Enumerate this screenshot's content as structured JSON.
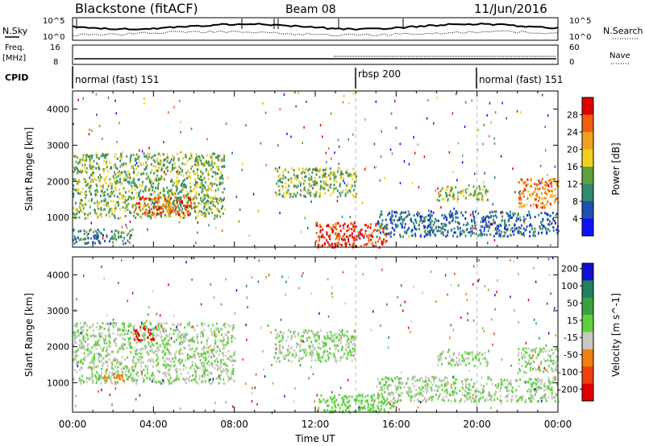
{
  "header": {
    "station": "Blackstone (fitACF)",
    "beam": "Beam 08",
    "date": "11/Jun/2016"
  },
  "noise_panel": {
    "left_label": "N.Sky",
    "right_label": "N.Search",
    "tick_top": "10^5",
    "tick_bottom": "10^0"
  },
  "freq_panel": {
    "left_label_line1": "Freq.",
    "left_label_line2": "[MHz]",
    "right_label": "Nave",
    "left_ticks": [
      "16",
      "8"
    ],
    "right_ticks": [
      "60",
      "0"
    ]
  },
  "cpid_panel": {
    "label": "CPID",
    "segments": [
      {
        "name": "normal (fast) 151",
        "start_h": 0,
        "end_h": 14
      },
      {
        "name": "rbsp 200",
        "start_h": 14,
        "end_h": 20
      },
      {
        "name": "normal (fast) 151",
        "start_h": 20,
        "end_h": 24
      }
    ]
  },
  "chart_data": [
    {
      "type": "heatmap",
      "panel": "power",
      "ylabel": "Slant Range [km]",
      "ylim": [
        180,
        4500
      ],
      "yticks": [
        1000,
        2000,
        3000,
        4000
      ],
      "xlim": [
        0,
        24
      ],
      "xticks": [
        "00:00",
        "04:00",
        "08:00",
        "12:00",
        "16:00",
        "20:00",
        "00:00"
      ],
      "colorbar_label": "Power [dB]",
      "colorbar_ticks": [
        "4",
        "8",
        "12",
        "16",
        "20",
        "24",
        "28"
      ],
      "colorbar_colors": [
        "#1010ff",
        "#2050b0",
        "#308a70",
        "#60a040",
        "#f0d020",
        "#f0a020",
        "#f06010",
        "#e00000"
      ],
      "colorbar_range": [
        0,
        32
      ],
      "regions": [
        {
          "x": [
            0.0,
            7.5
          ],
          "y": [
            1000,
            2800
          ],
          "level": 14
        },
        {
          "x": [
            3.0,
            6.0
          ],
          "y": [
            1100,
            1600
          ],
          "level": 26
        },
        {
          "x": [
            0.0,
            3.0
          ],
          "y": [
            300,
            700
          ],
          "level": 10
        },
        {
          "x": [
            10.0,
            14.0
          ],
          "y": [
            1600,
            2400
          ],
          "level": 14
        },
        {
          "x": [
            12.0,
            15.5
          ],
          "y": [
            200,
            900
          ],
          "level": 28
        },
        {
          "x": [
            15.0,
            24.0
          ],
          "y": [
            500,
            1200
          ],
          "level": 8
        },
        {
          "x": [
            18.0,
            20.5
          ],
          "y": [
            1500,
            1900
          ],
          "level": 16
        },
        {
          "x": [
            22.0,
            24.0
          ],
          "y": [
            1300,
            2100
          ],
          "level": 24
        }
      ]
    },
    {
      "type": "heatmap",
      "panel": "velocity",
      "ylabel": "Slant Range [km]",
      "ylim": [
        180,
        4500
      ],
      "yticks": [
        1000,
        2000,
        3000,
        4000
      ],
      "xlim": [
        0,
        24
      ],
      "xticks": [
        "00:00",
        "04:00",
        "08:00",
        "12:00",
        "16:00",
        "20:00",
        "00:00"
      ],
      "xlabel": "Time UT",
      "colorbar_label": "Velocity [m s^-1]",
      "colorbar_ticks": [
        "200",
        "100",
        "50",
        "15",
        "-15",
        "-50",
        "-100",
        "-200"
      ],
      "colorbar_colors": [
        "#1010d0",
        "#208060",
        "#40a040",
        "#60d040",
        "#c8c8c0",
        "#f08010",
        "#f04010",
        "#e00000"
      ],
      "colorbar_range": [
        -250,
        250
      ],
      "regions": [
        {
          "x": [
            0.0,
            8.0
          ],
          "y": [
            1000,
            2700
          ],
          "level": 0
        },
        {
          "x": [
            1.5,
            2.5
          ],
          "y": [
            1000,
            1300
          ],
          "level": -80
        },
        {
          "x": [
            10.0,
            14.0
          ],
          "y": [
            1600,
            2500
          ],
          "level": 0
        },
        {
          "x": [
            12.0,
            16.0
          ],
          "y": [
            200,
            700
          ],
          "level": 40
        },
        {
          "x": [
            15.0,
            24.0
          ],
          "y": [
            500,
            1200
          ],
          "level": 0
        },
        {
          "x": [
            18.0,
            20.5
          ],
          "y": [
            1500,
            1900
          ],
          "level": 0
        },
        {
          "x": [
            22.0,
            24.0
          ],
          "y": [
            1300,
            2000
          ],
          "level": 0
        },
        {
          "x": [
            3.0,
            4.0
          ],
          "y": [
            2200,
            2600
          ],
          "level": -200
        }
      ]
    }
  ]
}
